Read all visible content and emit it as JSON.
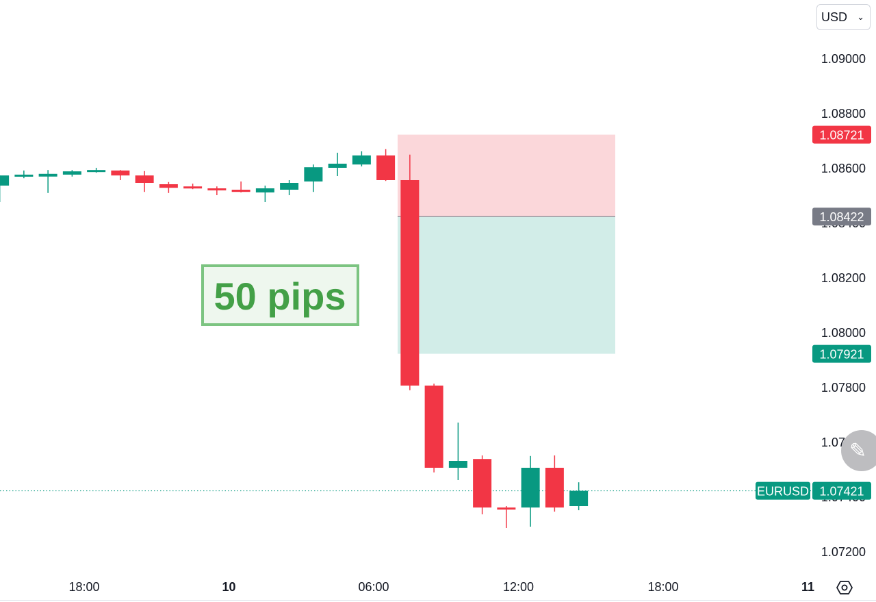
{
  "currency_select": {
    "value": "USD",
    "icon": "chevron-down-icon"
  },
  "settings_icon": "gear-icon",
  "edit_icon": "pencil-icon",
  "colors": {
    "up": "#089981",
    "down": "#f23645",
    "stop_zone": "#fbd7da",
    "target_zone": "#d2ede8",
    "entry_label": "#787b86",
    "annotation_border": "#7cc481",
    "annotation_text": "#43a047",
    "annotation_fill": "#eef7ee"
  },
  "annotation": {
    "text": "50 pips"
  },
  "position_tool": {
    "stop": 1.08721,
    "entry": 1.08422,
    "target": 1.07921
  },
  "price_badges": {
    "stop_label": "1.08721",
    "entry_label": "1.08422",
    "target_label": "1.07921",
    "symbol": "EURUSD",
    "last_label": "1.07421"
  },
  "chart_data": {
    "type": "candlestick",
    "symbol": "EURUSD",
    "last_price": 1.07421,
    "y_ticks": [
      "1.09000",
      "1.08800",
      "1.08600",
      "1.08400",
      "1.08200",
      "1.08000",
      "1.07800",
      "1.07600",
      "1.07400",
      "1.07200"
    ],
    "x_ticks": [
      {
        "label": "18:00",
        "hour": 0,
        "bold": false
      },
      {
        "label": "10",
        "hour": 6,
        "bold": true
      },
      {
        "label": "06:00",
        "hour": 12,
        "bold": false
      },
      {
        "label": "12:00",
        "hour": 18,
        "bold": false
      },
      {
        "label": "18:00",
        "hour": 24,
        "bold": false
      },
      {
        "label": "11",
        "hour": 30,
        "bold": true
      }
    ],
    "candles": [
      {
        "h": -3.5,
        "o": 1.08535,
        "hi": 1.08572,
        "lo": 1.08475,
        "c": 1.08572
      },
      {
        "h": -2.5,
        "o": 1.08572,
        "hi": 1.0859,
        "lo": 1.08562,
        "c": 1.08575
      },
      {
        "h": -1.5,
        "o": 1.08568,
        "hi": 1.08592,
        "lo": 1.08508,
        "c": 1.08578
      },
      {
        "h": -0.5,
        "o": 1.08575,
        "hi": 1.08592,
        "lo": 1.08568,
        "c": 1.08587
      },
      {
        "h": 0.5,
        "o": 1.0859,
        "hi": 1.086,
        "lo": 1.08582,
        "c": 1.08592
      },
      {
        "h": 1.5,
        "o": 1.0859,
        "hi": 1.08592,
        "lo": 1.08555,
        "c": 1.08572
      },
      {
        "h": 2.5,
        "o": 1.08572,
        "hi": 1.08588,
        "lo": 1.08512,
        "c": 1.08545
      },
      {
        "h": 3.5,
        "o": 1.0854,
        "hi": 1.08548,
        "lo": 1.08508,
        "c": 1.08527
      },
      {
        "h": 4.5,
        "o": 1.08532,
        "hi": 1.08542,
        "lo": 1.08522,
        "c": 1.08527
      },
      {
        "h": 5.5,
        "o": 1.08525,
        "hi": 1.08532,
        "lo": 1.085,
        "c": 1.08518
      },
      {
        "h": 6.5,
        "o": 1.0852,
        "hi": 1.0855,
        "lo": 1.0851,
        "c": 1.08512
      },
      {
        "h": 7.5,
        "o": 1.0851,
        "hi": 1.08535,
        "lo": 1.08475,
        "c": 1.08525
      },
      {
        "h": 8.5,
        "o": 1.0852,
        "hi": 1.08555,
        "lo": 1.085,
        "c": 1.08545
      },
      {
        "h": 9.5,
        "o": 1.0855,
        "hi": 1.08612,
        "lo": 1.08512,
        "c": 1.08602
      },
      {
        "h": 10.5,
        "o": 1.086,
        "hi": 1.08655,
        "lo": 1.0857,
        "c": 1.08615
      },
      {
        "h": 11.5,
        "o": 1.08612,
        "hi": 1.0866,
        "lo": 1.08605,
        "c": 1.08645
      },
      {
        "h": 12.5,
        "o": 1.08645,
        "hi": 1.08668,
        "lo": 1.08552,
        "c": 1.08555
      },
      {
        "h": 13.5,
        "o": 1.08555,
        "hi": 1.08648,
        "lo": 1.07788,
        "c": 1.07805
      },
      {
        "h": 14.5,
        "o": 1.07805,
        "hi": 1.07812,
        "lo": 1.07488,
        "c": 1.07505
      },
      {
        "h": 15.5,
        "o": 1.07505,
        "hi": 1.0767,
        "lo": 1.0746,
        "c": 1.0753
      },
      {
        "h": 16.5,
        "o": 1.07537,
        "hi": 1.0755,
        "lo": 1.07335,
        "c": 1.0736
      },
      {
        "h": 17.5,
        "o": 1.0736,
        "hi": 1.07365,
        "lo": 1.07285,
        "c": 1.07358
      },
      {
        "h": 18.5,
        "o": 1.0736,
        "hi": 1.07548,
        "lo": 1.0729,
        "c": 1.07505
      },
      {
        "h": 19.5,
        "o": 1.07505,
        "hi": 1.0755,
        "lo": 1.07345,
        "c": 1.0736
      },
      {
        "h": 20.5,
        "o": 1.07365,
        "hi": 1.07452,
        "lo": 1.0735,
        "c": 1.07421
      }
    ]
  }
}
